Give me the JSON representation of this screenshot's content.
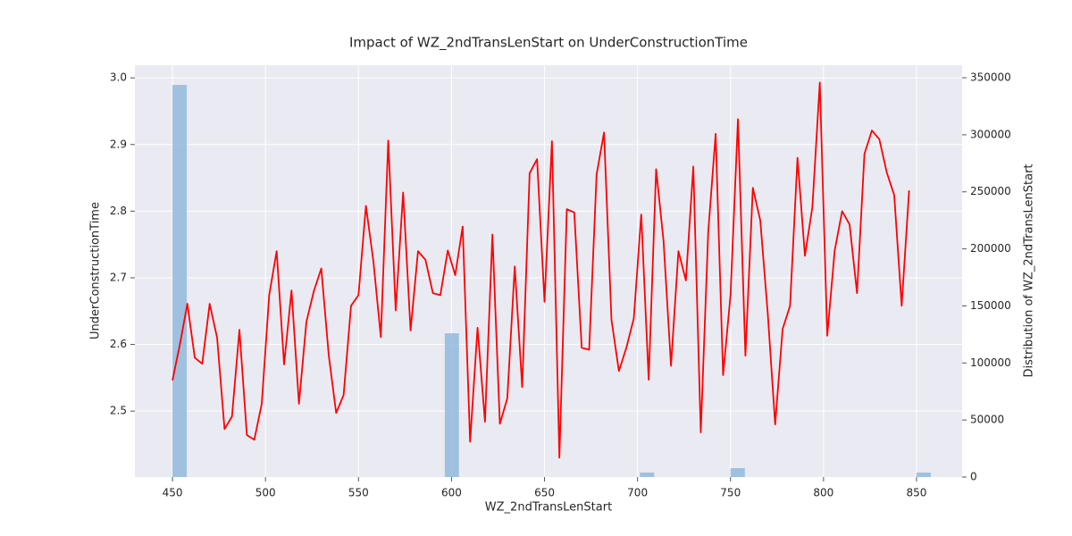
{
  "chart_data": {
    "type": "line",
    "title": "Impact of WZ_2ndTransLenStart on UnderConstructionTime",
    "x_label": "WZ_2ndTransLenStart",
    "y_label": "UnderConstructionTime",
    "y2_label": "Distribution of WZ_2ndTransLenStart",
    "x": [
      450,
      454,
      458,
      462,
      466,
      470,
      474,
      478,
      482,
      486,
      490,
      494,
      498,
      502,
      506,
      510,
      514,
      518,
      522,
      526,
      530,
      534,
      538,
      542,
      546,
      550,
      554,
      558,
      562,
      566,
      570,
      574,
      578,
      582,
      586,
      590,
      594,
      598,
      602,
      606,
      610,
      614,
      618,
      622,
      626,
      630,
      634,
      638,
      642,
      646,
      650,
      654,
      658,
      662,
      666,
      670,
      674,
      678,
      682,
      686,
      690,
      694,
      698,
      702,
      706,
      710,
      714,
      718,
      722,
      726,
      730,
      734,
      738,
      742,
      746,
      750,
      754,
      758,
      762,
      766,
      770,
      774,
      778,
      782,
      786,
      790,
      794,
      798,
      802,
      806,
      810,
      814,
      818,
      822,
      826,
      830,
      834,
      838,
      842,
      846
    ],
    "values": [
      2.546,
      2.6,
      2.661,
      2.58,
      2.571,
      2.661,
      2.61,
      2.473,
      2.492,
      2.622,
      2.464,
      2.457,
      2.511,
      2.674,
      2.74,
      2.57,
      2.681,
      2.511,
      2.634,
      2.68,
      2.714,
      2.584,
      2.497,
      2.524,
      2.658,
      2.674,
      2.808,
      2.725,
      2.611,
      2.906,
      2.651,
      2.828,
      2.621,
      2.74,
      2.727,
      2.677,
      2.674,
      2.741,
      2.704,
      2.777,
      2.454,
      2.625,
      2.484,
      2.765,
      2.481,
      2.519,
      2.717,
      2.536,
      2.857,
      2.878,
      2.664,
      2.905,
      2.43,
      2.803,
      2.798,
      2.595,
      2.592,
      2.855,
      2.918,
      2.637,
      2.56,
      2.595,
      2.639,
      2.795,
      2.547,
      2.863,
      2.755,
      2.568,
      2.74,
      2.696,
      2.867,
      2.468,
      2.768,
      2.916,
      2.554,
      2.674,
      2.938,
      2.583,
      2.835,
      2.786,
      2.647,
      2.48,
      2.623,
      2.658,
      2.88,
      2.733,
      2.806,
      2.993,
      2.613,
      2.741,
      2.8,
      2.78,
      2.677,
      2.886,
      2.921,
      2.908,
      2.858,
      2.824,
      2.658,
      2.831
    ],
    "color": "#ff0000",
    "histogram": {
      "type": "histogram",
      "axis": "y2",
      "color": "#92b9dc",
      "bins": [
        450,
        457.7,
        596.4,
        604,
        701.3,
        709,
        750,
        757.7,
        850,
        857.7
      ],
      "values": [
        343700,
        0,
        126000,
        0,
        3900,
        0,
        7800,
        0,
        3900
      ]
    },
    "xlim": [
      429.8,
      874.5
    ],
    "ylim": [
      2.401,
      3.019
    ],
    "y2lim": [
      0,
      361000
    ],
    "xticks": [
      450,
      500,
      550,
      600,
      650,
      700,
      750,
      800,
      850
    ],
    "yticks": [
      2.5,
      2.6,
      2.7,
      2.8,
      2.9,
      {
        "value": 3,
        "label": "3.0"
      }
    ],
    "y2ticks": [
      0,
      50000,
      100000,
      150000,
      200000,
      250000,
      300000,
      350000
    ],
    "grid": true
  }
}
